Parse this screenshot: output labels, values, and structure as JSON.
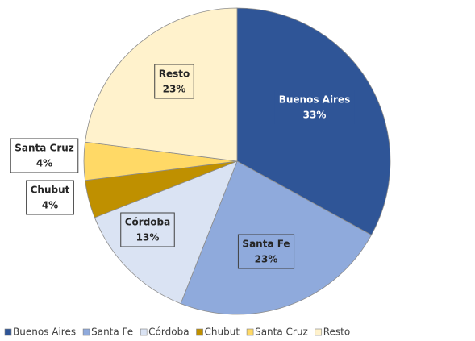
{
  "chart_data": {
    "type": "pie",
    "categories": [
      "Buenos Aires",
      "Santa Fe",
      "Córdoba",
      "Chubut",
      "Santa Cruz",
      "Resto"
    ],
    "values": [
      33,
      23,
      13,
      4,
      4,
      23
    ],
    "value_labels": [
      "33%",
      "23%",
      "13%",
      "4%",
      "4%",
      "23%"
    ],
    "colors": [
      "#2f5597",
      "#8faadc",
      "#dae3f3",
      "#bf9000",
      "#ffd966",
      "#fff2cc"
    ],
    "legend": "bottom"
  }
}
